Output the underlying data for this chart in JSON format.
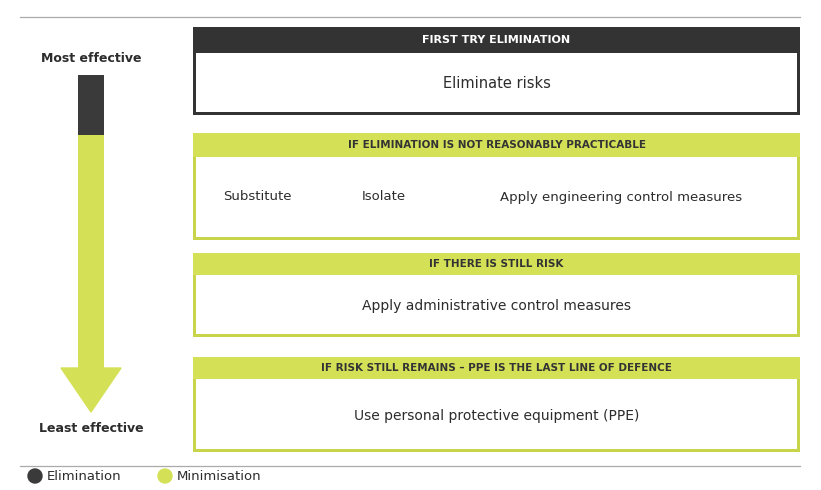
{
  "bg_color": "#ffffff",
  "line_color": "#aaaaaa",
  "arrow_color_dark": "#3a3a3a",
  "arrow_color_light": "#d4e157",
  "most_effective_label": "Most effective",
  "least_effective_label": "Least effective",
  "section1_header": "FIRST TRY ELIMINATION",
  "section1_header_bg": "#333333",
  "section1_header_fg": "#ffffff",
  "section1_body": "Eliminate risks",
  "section1_body_bg": "#ffffff",
  "section1_border": "#333333",
  "section2_header": "IF ELIMINATION IS NOT REASONABLY PRACTICABLE",
  "section2_header_bg": "#d4e157",
  "section2_header_fg": "#333333",
  "section2_body_bg": "#ffffff",
  "section2_border": "#c8d44a",
  "section2_cells": [
    "Substitute",
    "Isolate",
    "Apply engineering control measures"
  ],
  "section3_header": "IF THERE IS STILL RISK",
  "section3_header_bg": "#d4e157",
  "section3_header_fg": "#333333",
  "section3_body": "Apply administrative control measures",
  "section3_body_bg": "#ffffff",
  "section3_border": "#c8d44a",
  "section4_header": "IF RISK STILL REMAINS – PPE IS THE LAST LINE OF DEFENCE",
  "section4_header_bg": "#d4e157",
  "section4_header_fg": "#333333",
  "section4_body": "Use personal protective equipment (PPE)",
  "section4_body_bg": "#ffffff",
  "section4_border": "#c8d44a",
  "legend_elimination_label": "Elimination",
  "legend_minimisation_label": "Minimisation",
  "legend_elim_color": "#3a3a3a",
  "legend_mini_color": "#d4e157"
}
